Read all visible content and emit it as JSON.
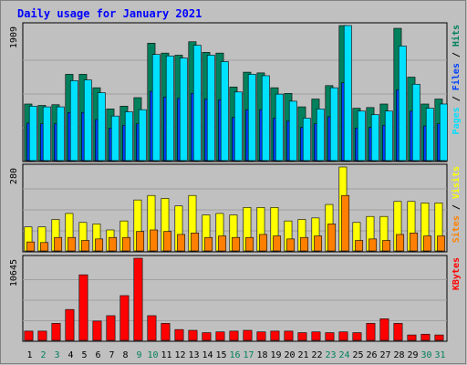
{
  "colors": {
    "page_bg": "#C0C0C0",
    "plot_bg": "#C0C0C0",
    "title": "#0000FF",
    "hits": "#00805C",
    "files": "#0040FF",
    "pages": "#00E0FF",
    "visits": "#FFFF00",
    "sites": "#FF8000",
    "kbytes": "#FF0000",
    "weekend_day": "#00805C",
    "weekday": "#000000"
  },
  "chart_data": {
    "type": "bar",
    "title": "Daily usage for January 2021",
    "x": [
      "1",
      "2",
      "3",
      "4",
      "5",
      "6",
      "7",
      "8",
      "9",
      "10",
      "11",
      "12",
      "13",
      "14",
      "15",
      "16",
      "17",
      "18",
      "19",
      "20",
      "21",
      "22",
      "23",
      "24",
      "25",
      "26",
      "27",
      "28",
      "29",
      "30",
      "31"
    ],
    "weekend_days": [
      "2",
      "3",
      "9",
      "10",
      "16",
      "17",
      "23",
      "24",
      "30",
      "31"
    ],
    "panels": [
      {
        "id": "hits",
        "max_label": "1909",
        "ymax": 1909,
        "legend": [
          {
            "label": "Pages",
            "color": "#00E0FF"
          },
          {
            "label": "Files",
            "color": "#0040FF"
          },
          {
            "label": "Hits",
            "color": "#00805C"
          }
        ],
        "series": [
          {
            "name": "Hits",
            "values": [
              800,
              780,
              790,
              1220,
              1220,
              1030,
              730,
              770,
              890,
              1660,
              1520,
              1490,
              1680,
              1530,
              1520,
              1040,
              1250,
              1240,
              1030,
              950,
              760,
              870,
              1060,
              1909,
              740,
              750,
              800,
              1870,
              1180,
              800,
              870
            ]
          },
          {
            "name": "Files",
            "values": [
              530,
              520,
              520,
              680,
              680,
              580,
              460,
              500,
              520,
              980,
              900,
              880,
              950,
              870,
              860,
              610,
              720,
              720,
              600,
              560,
              470,
              520,
              620,
              1100,
              460,
              470,
              500,
              1000,
              700,
              490,
              520
            ]
          },
          {
            "name": "Pages",
            "values": [
              770,
              760,
              760,
              1130,
              1140,
              960,
              630,
              690,
              720,
              1500,
              1480,
              1450,
              1630,
              1490,
              1400,
              970,
              1220,
              1200,
              940,
              840,
              600,
              730,
              1030,
              1909,
              700,
              650,
              700,
              1620,
              1080,
              740,
              800
            ]
          }
        ]
      },
      {
        "id": "visits",
        "max_label": "280",
        "ymax": 280,
        "legend": [
          {
            "label": "Sites",
            "color": "#FF8000"
          },
          {
            "label": "Visits",
            "color": "#FFFF00"
          }
        ],
        "series": [
          {
            "name": "Visits",
            "values": [
              80,
              80,
              105,
              125,
              95,
              90,
              70,
              100,
              170,
              185,
              175,
              150,
              185,
              120,
              125,
              120,
              145,
              145,
              145,
              100,
              105,
              110,
              155,
              280,
              95,
              115,
              115,
              165,
              165,
              160,
              160
            ]
          },
          {
            "name": "Sites",
            "values": [
              30,
              28,
              45,
              45,
              35,
              40,
              45,
              45,
              65,
              70,
              65,
              55,
              60,
              45,
              50,
              45,
              45,
              55,
              50,
              40,
              45,
              50,
              90,
              185,
              35,
              40,
              35,
              55,
              60,
              50,
              50
            ]
          }
        ]
      },
      {
        "id": "kbytes",
        "max_label": "10645",
        "ymax": 10645,
        "legend": [
          {
            "label": "KBytes",
            "color": "#FF0000"
          }
        ],
        "series": [
          {
            "name": "KBytes",
            "values": [
              1200,
              1200,
              2200,
              4000,
              8500,
              2500,
              3200,
              5800,
              10645,
              3200,
              2200,
              1400,
              1300,
              1000,
              1100,
              1200,
              1300,
              1100,
              1200,
              1200,
              1000,
              1100,
              1000,
              1100,
              1000,
              2200,
              2800,
              2200,
              700,
              800,
              700
            ]
          }
        ]
      }
    ]
  }
}
